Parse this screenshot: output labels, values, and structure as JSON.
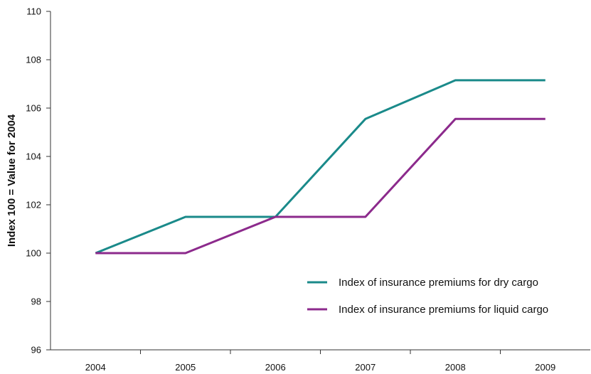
{
  "chart_data": {
    "type": "line",
    "title": "",
    "xlabel": "",
    "ylabel": "Index 100 = Value for 2004",
    "categories": [
      "2004",
      "2005",
      "2006",
      "2007",
      "2008",
      "2009"
    ],
    "ylim": [
      96,
      110
    ],
    "yticks": [
      96,
      98,
      100,
      102,
      104,
      106,
      108,
      110
    ],
    "grid": false,
    "legend_position": "bottom-right",
    "series": [
      {
        "name": "Index of insurance premiums for dry cargo",
        "color": "#1a8a8a",
        "values": [
          100,
          101.5,
          101.5,
          105.55,
          107.15,
          107.15
        ]
      },
      {
        "name": "Index of insurance premiums for liquid cargo",
        "color": "#8c2a8c",
        "values": [
          100,
          100,
          101.5,
          101.5,
          105.55,
          105.55
        ]
      }
    ]
  }
}
